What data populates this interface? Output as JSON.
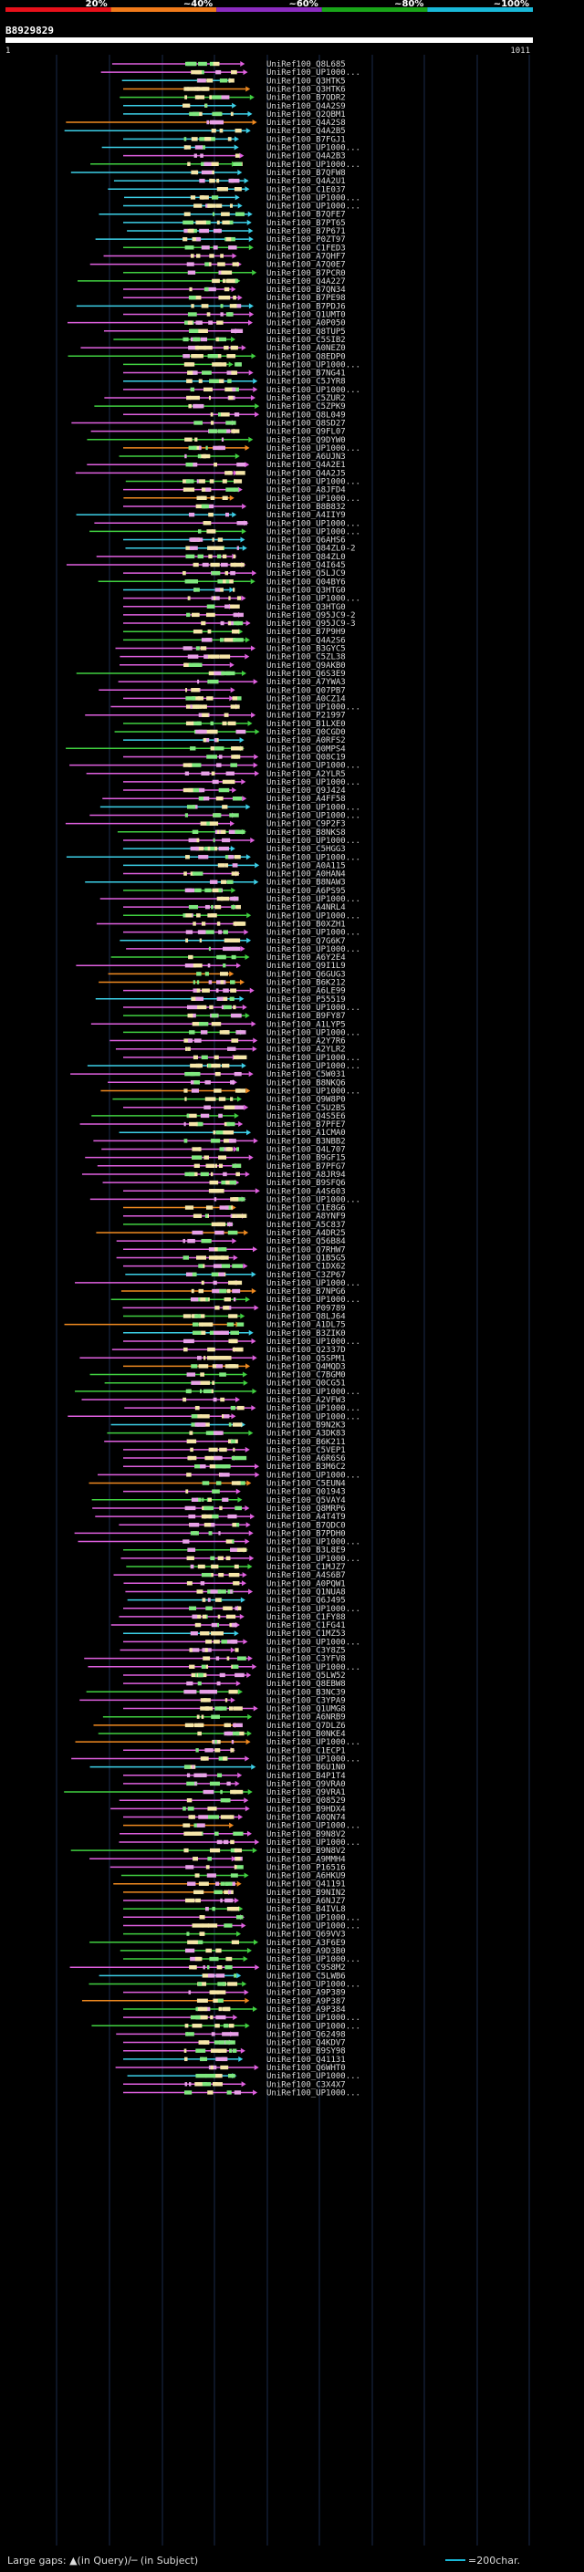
{
  "query_id": "B8929829",
  "range_start": "1",
  "range_end": "1011",
  "scale": {
    "labels": [
      "20%",
      "~40%",
      "~60%",
      "~80%",
      "~100%"
    ],
    "colors": [
      "#e8101a",
      "#f07a1a",
      "#8c2cc0",
      "#19a519",
      "#19b8d8"
    ]
  },
  "footer": {
    "gaps_text": "Large gaps: ▲(in Query)/─ (in Subject)",
    "scale_text": "=200char."
  },
  "chart_data": {
    "type": "alignment",
    "hits": [
      "UniRef100_Q8L685",
      "UniRef100_UP1000...",
      "UniRef100_Q3HTK5",
      "UniRef100_Q3HTK6",
      "UniRef100_B7QDR2",
      "UniRef100_Q4A2S9",
      "UniRef100_Q2QBM1",
      "UniRef100_Q4A2S8",
      "UniRef100_Q4A2B5",
      "UniRef100_B7FGJ1",
      "UniRef100_UP1000...",
      "UniRef100_Q4A2B3",
      "UniRef100_UP1000...",
      "UniRef100_B7QFW8",
      "UniRef100_Q4A2U1",
      "UniRef100_C1E037",
      "UniRef100_UP1000...",
      "UniRef100_UP1000...",
      "UniRef100_B7QFE7",
      "UniRef100_B7PT65",
      "UniRef100_B7P671",
      "UniRef100_P0ZT97",
      "UniRef100_C1FED3",
      "UniRef100_A7QHF7",
      "UniRef100_A7Q0E7",
      "UniRef100_B7PCR0",
      "UniRef100_Q4A227",
      "UniRef100_B7QN34",
      "UniRef100_B7PE98",
      "UniRef100_B7PDJ6",
      "UniRef100_Q1UMT0",
      "UniRef100_A0P050",
      "UniRef100_Q8TUP5",
      "UniRef100_C5SIB2",
      "UniRef100_A0NEZ0",
      "UniRef100_Q8EDP0",
      "UniRef100_UP1000...",
      "UniRef100_B7NG41",
      "UniRef100_C5JYR8",
      "UniRef100_UP1000...",
      "UniRef100_C5ZUR2",
      "UniRef100_C5ZPK9",
      "UniRef100_Q8L049",
      "UniRef100_Q8SD27",
      "UniRef100_Q9FL07",
      "UniRef100_Q9DYW0",
      "UniRef100_UP1000...",
      "UniRef100_A6UJN3",
      "UniRef100_Q4A2E1",
      "UniRef100_Q4A2J5",
      "UniRef100_UP1000...",
      "UniRef100_A8JFD4",
      "UniRef100_UP1000...",
      "UniRef100_B8B832",
      "UniRef100_A4IIY9",
      "UniRef100_UP1000...",
      "UniRef100_UP1000...",
      "UniRef100_Q6AHS6",
      "UniRef100_Q84ZL0-2",
      "UniRef100_Q84ZL0",
      "UniRef100_Q4I645",
      "UniRef100_Q5LJC9",
      "UniRef100_Q04BY6",
      "UniRef100_Q3HTG0",
      "UniRef100_UP1000...",
      "UniRef100_Q3HTG0",
      "UniRef100_Q95JC9-2",
      "UniRef100_Q95JC9-3",
      "UniRef100_B7P9H9",
      "UniRef100_Q4A2S6",
      "UniRef100_B3GYC5",
      "UniRef100_C5ZL38",
      "UniRef100_Q9AKB0",
      "UniRef100_Q6S3E9",
      "UniRef100_A7YWA3",
      "UniRef100_Q07PB7",
      "UniRef100_A0CZ14",
      "UniRef100_UP1000...",
      "UniRef100_P21997",
      "UniRef100_B1LXE0",
      "UniRef100_Q0CGD0",
      "UniRef100_A0RFS2",
      "UniRef100_Q0MPS4",
      "UniRef100_Q08C19",
      "UniRef100_UP1000...",
      "UniRef100_A2YLR5",
      "UniRef100_UP1000...",
      "UniRef100_Q9J424",
      "UniRef100_A4FF58",
      "UniRef100_UP1000...",
      "UniRef100_UP1000...",
      "UniRef100_C9P2F3",
      "UniRef100_B8NKS8",
      "UniRef100_UP1000...",
      "UniRef100_C5HGG3",
      "UniRef100_UP1000...",
      "UniRef100_A0A115",
      "UniRef100_A0HAN4",
      "UniRef100_B8NAW3",
      "UniRef100_A6PS95",
      "UniRef100_UP1000...",
      "UniRef100_A4NRL4",
      "UniRef100_UP1000...",
      "UniRef100_B0XZH1",
      "UniRef100_UP1000...",
      "UniRef100_Q7G6K7",
      "UniRef100_UP1000...",
      "UniRef100_A6Y2E4",
      "UniRef100_Q9I1L9",
      "UniRef100_Q6GUG3",
      "UniRef100_B6K212",
      "UniRef100_A6LE99",
      "UniRef100_P55519",
      "UniRef100_UP1000...",
      "UniRef100_B9FY87",
      "UniRef100_A1LYP5",
      "UniRef100_UP1000...",
      "UniRef100_A2Y7R6",
      "UniRef100_A2YLR2",
      "UniRef100_UP1000...",
      "UniRef100_UP1000...",
      "UniRef100_C5W031",
      "UniRef100_B8NKQ6",
      "UniRef100_UP1000...",
      "UniRef100_Q9W8P0",
      "UniRef100_C5U2B5",
      "UniRef100_Q4S5E6",
      "UniRef100_B7PFE7",
      "UniRef100_A1CMA0",
      "UniRef100_B3NBB2",
      "UniRef100_Q4L707",
      "UniRef100_B9GF15",
      "UniRef100_B7PFG7",
      "UniRef100_A8JR94",
      "UniRef100_B9SFQ6",
      "UniRef100_A4S603",
      "UniRef100_UP1000...",
      "UniRef100_C1E8G6",
      "UniRef100_A8YNF9",
      "UniRef100_A5C837",
      "UniRef100_A4DR25",
      "UniRef100_Q56B84",
      "UniRef100_Q7RHW7",
      "UniRef100_Q1B5G5",
      "UniRef100_C1DX62",
      "UniRef100_C3ZP67",
      "UniRef100_UP1000...",
      "UniRef100_B7NPG6",
      "UniRef100_UP1000...",
      "UniRef100_P09789",
      "UniRef100_Q8LJ64",
      "UniRef100_A1DL75",
      "UniRef100_B3ZIK0",
      "UniRef100_UP1000...",
      "UniRef100_Q2337D",
      "UniRef100_Q5SPM1",
      "UniRef100_Q4MQD3",
      "UniRef100_C7BGM0",
      "UniRef100_Q0CG51",
      "UniRef100_UP1000...",
      "UniRef100_A2VFW3",
      "UniRef100_UP1000...",
      "UniRef100_UP1000...",
      "UniRef100_B9N2K3",
      "UniRef100_A3DK83",
      "UniRef100_B6K211",
      "UniRef100_C5VEP1",
      "UniRef100_A6R6S6",
      "UniRef100_B3M6C2",
      "UniRef100_UP1000...",
      "UniRef100_C5EUN4",
      "UniRef100_Q01943",
      "UniRef100_Q5VAY4",
      "UniRef100_Q8MRP6",
      "UniRef100_A4T4T9",
      "UniRef100_B7QDC0",
      "UniRef100_B7PDH0",
      "UniRef100_UP1000...",
      "UniRef100_B3L8E9",
      "UniRef100_UP1000...",
      "UniRef100_C1MJZ7",
      "UniRef100_A4S6B7",
      "UniRef100_A0PQW1",
      "UniRef100_Q1NUA8",
      "UniRef100_Q6J495",
      "UniRef100_UP1000...",
      "UniRef100_C1FY88",
      "UniRef100_C1FG41",
      "UniRef100_C1MZ53",
      "UniRef100_UP1000...",
      "UniRef100_C3Y8Z5",
      "UniRef100_C3YFV8",
      "UniRef100_UP1000...",
      "UniRef100_Q5LW52",
      "UniRef100_Q8EBW8",
      "UniRef100_B3NC39",
      "UniRef100_C3YPA9",
      "UniRef100_Q1UMG8",
      "UniRef100_A6NRB9",
      "UniRef100_Q7DLZ6",
      "UniRef100_B0NKE4",
      "UniRef100_UP1000...",
      "UniRef100_C1ECP1",
      "UniRef100_UP1000...",
      "UniRef100_B6U1N0",
      "UniRef100_B4P1T4",
      "UniRef100_Q9VRA0",
      "UniRef100_Q9VRA1",
      "UniRef100_Q08529",
      "UniRef100_B9HDX4",
      "UniRef100_A0QN74",
      "UniRef100_UP1000...",
      "UniRef100_B9N8V2",
      "UniRef100_UP1000...",
      "UniRef100_B9N8V2",
      "UniRef100_A9MMH4",
      "UniRef100_P16516",
      "UniRef100_A6HKU9",
      "UniRef100_Q41191",
      "UniRef100_B9NIN2",
      "UniRef100_A6NJZ7",
      "UniRef100_B4IVL8",
      "UniRef100_UP1000...",
      "UniRef100_UP1000...",
      "UniRef100_Q69VV3",
      "UniRef100_A3F6E9",
      "UniRef100_A9D3B0",
      "UniRef100_UP1000...",
      "UniRef100_C9S8M2",
      "UniRef100_C5LWB6",
      "UniRef100_UP1000...",
      "UniRef100_A9P389",
      "UniRef100_A9P387",
      "UniRef100_A9P384",
      "UniRef100_UP1000...",
      "UniRef100_UP1000...",
      "UniRef100_Q62498",
      "UniRef100_Q4KDV7",
      "UniRef100_B9SY98",
      "UniRef100_Q41131",
      "UniRef100_Q6WHT0",
      "UniRef100_UP1000...",
      "UniRef100_C3X4X7",
      "UniRef100_UP1000..."
    ]
  }
}
